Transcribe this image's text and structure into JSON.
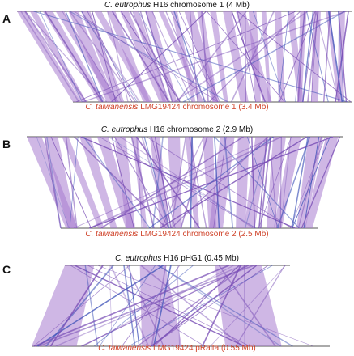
{
  "panels": [
    {
      "letter": "A",
      "top": {
        "species": "C. eutrophus",
        "rest": " H16 chromosome 1  (4 Mb)"
      },
      "bottom": {
        "species": "C. taiwanensis",
        "rest": " LMG19424 chromosome 1 (3.4 Mb)"
      }
    },
    {
      "letter": "B",
      "top": {
        "species": "C. eutrophus",
        "rest": " H16 chromosome 2  (2.9 Mb)"
      },
      "bottom": {
        "species": "C. taiwanensis",
        "rest": " LMG19424 chromosome 2 (2.5  Mb)"
      }
    },
    {
      "letter": "C",
      "top": {
        "species": "C. eutrophus",
        "rest": " H16 pHG1  (0.45 Mb)"
      },
      "bottom": {
        "species": "C. taiwanensis",
        "rest": " LMG19424 pRalta (0.55 Mb)"
      }
    }
  ],
  "colors": {
    "band_fill": "#a77bd0",
    "line_purple": "#7a4fb6",
    "line_blue": "#3d52b8",
    "axis": "#555555",
    "bottom_label": "#d0452c"
  }
}
